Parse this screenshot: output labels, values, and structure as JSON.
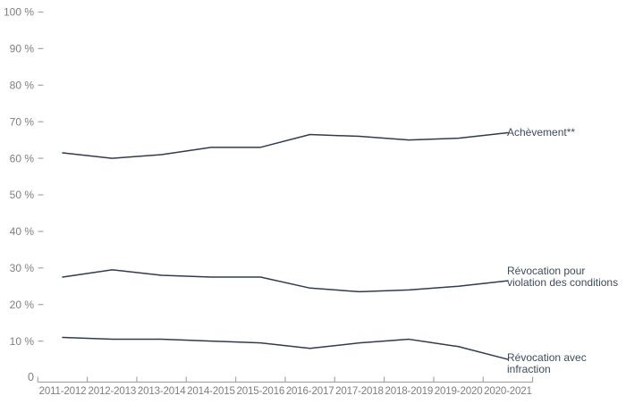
{
  "chart_data": {
    "type": "line",
    "title": "",
    "xlabel": "",
    "ylabel": "",
    "grid": false,
    "legend_position": "right-of-line-end",
    "categories": [
      "2011-2012",
      "2012-2013",
      "2013-2014",
      "2014-2015",
      "2015-2016",
      "2016-2017",
      "2017-2018",
      "2018-2019",
      "2019-2020",
      "2020-2021"
    ],
    "series": [
      {
        "name": "Achèvement**",
        "label_lines": [
          "Achèvement**"
        ],
        "values": [
          61.5,
          60,
          61,
          63,
          63,
          66.5,
          66,
          65,
          65.5,
          67
        ]
      },
      {
        "name": "Révocation pour violation des conditions",
        "label_lines": [
          "Révocation pour",
          "violation des conditions"
        ],
        "values": [
          27.5,
          29.5,
          28,
          27.5,
          27.5,
          24.5,
          23.5,
          24,
          25,
          26.5
        ]
      },
      {
        "name": "Révocation avec infraction",
        "label_lines": [
          "Révocation avec",
          "infraction"
        ],
        "values": [
          11,
          10.5,
          10.5,
          10,
          9.5,
          8,
          9.5,
          10.5,
          8.5,
          5
        ]
      }
    ],
    "y_axis": {
      "ylim": [
        0,
        100
      ],
      "tick_values": [
        100,
        90,
        80,
        70,
        60,
        50,
        40,
        30,
        20,
        10
      ],
      "tick_labels": [
        "100 %",
        "90 %",
        "80 %",
        "70 %",
        "60 %",
        "50 %",
        "40 %",
        "30 %",
        "20 %",
        "10 %"
      ],
      "origin_label": "0"
    }
  },
  "colors": {
    "series_line": "#2f3c50",
    "series_label_text": "#3d4b5c",
    "axis_text": "#7f7f7f",
    "axis_line": "#a6a6a6",
    "background": "#ffffff"
  }
}
